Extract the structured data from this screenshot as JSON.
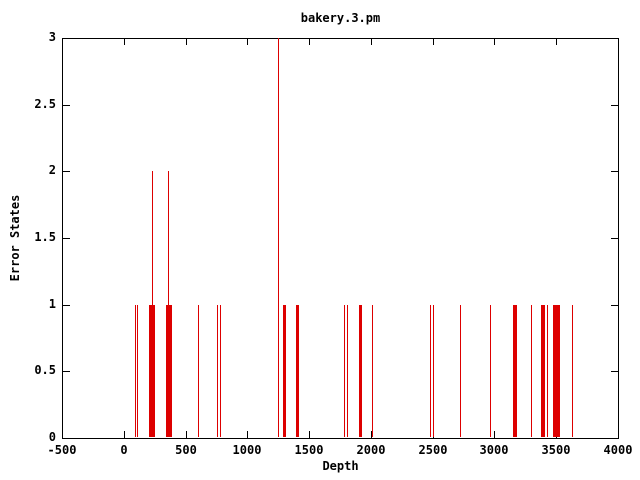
{
  "window": {
    "title": "bakery.3.pm"
  },
  "chart_data": {
    "type": "bar",
    "subtype": "impulses",
    "title": "bakery.3.pm",
    "xlabel": "Depth",
    "ylabel": "Error States",
    "xlim": [
      -500,
      4000
    ],
    "ylim": [
      0,
      3
    ],
    "xticks": [
      -500,
      0,
      500,
      1000,
      1500,
      2000,
      2500,
      3000,
      3500,
      4000
    ],
    "yticks": [
      0,
      0.5,
      1,
      1.5,
      2,
      2.5,
      3
    ],
    "grid": false,
    "legend": "none",
    "line_color": "#dd0000",
    "axis_color": "#000000",
    "background_color": "#ffffff",
    "points_format": "[depth, error_states]",
    "points": [
      [
        93,
        1
      ],
      [
        115,
        1
      ],
      [
        212,
        1
      ],
      [
        220,
        1
      ],
      [
        228,
        1
      ],
      [
        236,
        2
      ],
      [
        244,
        1
      ],
      [
        252,
        1
      ],
      [
        344,
        1
      ],
      [
        352,
        1
      ],
      [
        360,
        2
      ],
      [
        368,
        1
      ],
      [
        376,
        1
      ],
      [
        384,
        1
      ],
      [
        603,
        1
      ],
      [
        757,
        1
      ],
      [
        779,
        1
      ],
      [
        1250,
        3
      ],
      [
        1291,
        1
      ],
      [
        1299,
        1
      ],
      [
        1307,
        1
      ],
      [
        1395,
        1
      ],
      [
        1403,
        1
      ],
      [
        1411,
        1
      ],
      [
        1790,
        1
      ],
      [
        1809,
        1
      ],
      [
        1909,
        1
      ],
      [
        1917,
        1
      ],
      [
        1925,
        1
      ],
      [
        2011,
        1
      ],
      [
        2486,
        1
      ],
      [
        2503,
        1
      ],
      [
        2729,
        1
      ],
      [
        2972,
        1
      ],
      [
        3158,
        1
      ],
      [
        3166,
        1
      ],
      [
        3174,
        1
      ],
      [
        3182,
        1
      ],
      [
        3298,
        1
      ],
      [
        3379,
        1
      ],
      [
        3388,
        1
      ],
      [
        3397,
        1
      ],
      [
        3406,
        1
      ],
      [
        3433,
        1
      ],
      [
        3481,
        1
      ],
      [
        3489,
        1
      ],
      [
        3497,
        1
      ],
      [
        3505,
        1
      ],
      [
        3513,
        1
      ],
      [
        3521,
        1
      ],
      [
        3529,
        1
      ],
      [
        3635,
        1
      ]
    ]
  }
}
